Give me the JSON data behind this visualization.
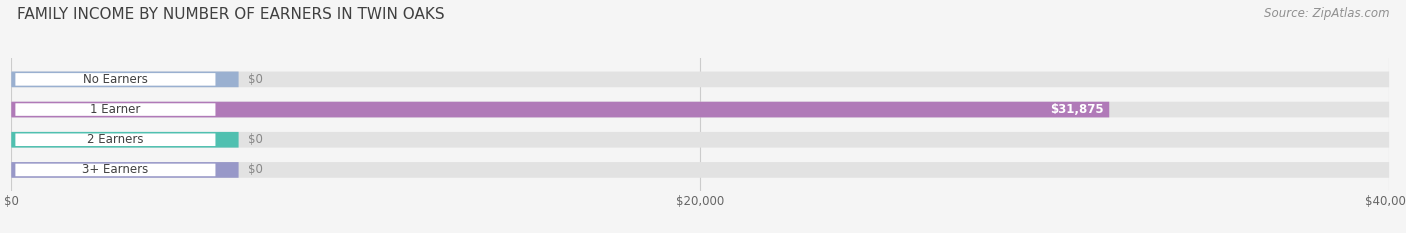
{
  "title": "FAMILY INCOME BY NUMBER OF EARNERS IN TWIN OAKS",
  "source": "Source: ZipAtlas.com",
  "categories": [
    "No Earners",
    "1 Earner",
    "2 Earners",
    "3+ Earners"
  ],
  "values": [
    0,
    31875,
    0,
    0
  ],
  "bar_colors": [
    "#9ab0d0",
    "#b07ab8",
    "#50c0b0",
    "#9898c8"
  ],
  "xlim": [
    0,
    40000
  ],
  "xticks": [
    0,
    20000,
    40000
  ],
  "xtick_labels": [
    "$0",
    "$20,000",
    "$40,000"
  ],
  "bg_color": "#f5f5f5",
  "bar_bg_color": "#e2e2e2",
  "title_color": "#404040",
  "source_color": "#909090",
  "value_label_color": "#ffffff",
  "zero_label_color": "#888888",
  "bar_height": 0.52,
  "title_fontsize": 11,
  "label_fontsize": 8.5,
  "tick_fontsize": 8.5,
  "source_fontsize": 8.5
}
